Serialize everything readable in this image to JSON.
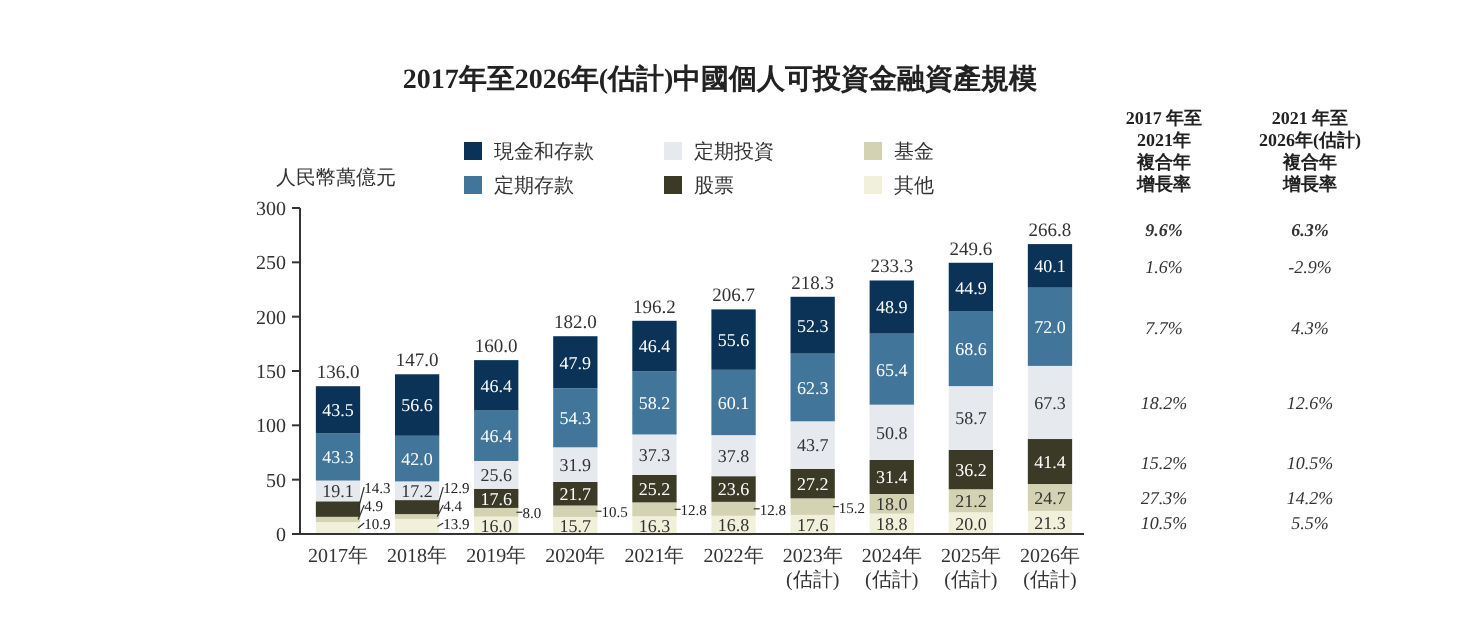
{
  "chart_data": {
    "type": "bar",
    "stacked": true,
    "title": "2017年至2026年(估計)中國個人可投資金融資產規模",
    "ylabel": "人民幣萬億元",
    "categories": [
      "2017年",
      "2018年",
      "2019年",
      "2020年",
      "2021年",
      "2022年",
      "2023年\n(估計)",
      "2024年\n(估計)",
      "2025年\n(估計)",
      "2026年\n(估計)"
    ],
    "series": [
      {
        "name": "其他",
        "color": "#f1f0da",
        "values": [
          10.9,
          13.9,
          16.0,
          15.7,
          16.3,
          16.8,
          17.6,
          18.8,
          20.0,
          21.3
        ],
        "value_labels": [
          "10.9",
          "13.9",
          "16.0",
          "15.7",
          "16.3",
          "16.8",
          "17.6",
          "18.8",
          "20.0",
          "21.3"
        ]
      },
      {
        "name": "基金",
        "color": "#d3d2b2",
        "values": [
          4.9,
          4.4,
          8.0,
          10.5,
          12.8,
          12.8,
          15.2,
          18.0,
          21.2,
          24.7
        ],
        "value_labels": [
          "4.9",
          "4.4",
          "8.0",
          "10.5",
          "12.8",
          "12.8",
          "15.2",
          "18.0",
          "21.2",
          "24.7"
        ]
      },
      {
        "name": "股票",
        "color": "#3b3a26",
        "values": [
          14.3,
          12.9,
          17.6,
          21.7,
          25.2,
          23.6,
          27.2,
          31.4,
          36.2,
          41.4
        ],
        "value_labels": [
          "14.3",
          "12.9",
          "17.6",
          "21.7",
          "25.2",
          "23.6",
          "27.2",
          "31.4",
          "36.2",
          "41.4"
        ]
      },
      {
        "name": "定期投資",
        "color": "#e6e9ee",
        "values": [
          19.1,
          17.2,
          25.6,
          31.9,
          37.3,
          37.8,
          43.7,
          50.8,
          58.7,
          67.3
        ],
        "value_labels": [
          "19.1",
          "17.2",
          "25.6",
          "31.9",
          "37.3",
          "37.8",
          "43.7",
          "50.8",
          "58.7",
          "67.3"
        ]
      },
      {
        "name": "定期存款",
        "color": "#41769a",
        "values": [
          43.3,
          42.0,
          46.4,
          54.3,
          58.2,
          60.1,
          62.3,
          65.4,
          68.6,
          72.0
        ],
        "value_labels": [
          "43.3",
          "42.0",
          "46.4",
          "54.3",
          "58.2",
          "60.1",
          "62.3",
          "65.4",
          "68.6",
          "72.0"
        ]
      },
      {
        "name": "現金和存款",
        "color": "#0b3357",
        "values": [
          43.5,
          56.6,
          46.4,
          47.9,
          46.4,
          55.6,
          52.3,
          48.9,
          44.9,
          40.1
        ],
        "value_labels": [
          "43.5",
          "56.6",
          "46.4",
          "47.9",
          "46.4",
          "55.6",
          "52.3",
          "48.9",
          "44.9",
          "40.1"
        ]
      }
    ],
    "totals": [
      "136.0",
      "147.0",
      "160.0",
      "182.0",
      "196.2",
      "206.7",
      "218.3",
      "233.3",
      "249.6",
      "266.8"
    ],
    "ylim": [
      0,
      300
    ],
    "yticks": [
      0,
      50,
      100,
      150,
      200,
      250,
      300
    ],
    "grid": false,
    "legend": "top",
    "annotations": [
      "2017 年至2021年複合年增長率",
      "2021 年至2026年(估計)複合年增長率",
      "9.6%",
      "6.3%",
      "1.6%",
      "-2.9%",
      "7.7%",
      "4.3%",
      "18.2%",
      "12.6%",
      "15.2%",
      "10.5%",
      "27.3%",
      "14.2%",
      "10.5%",
      "5.5%"
    ]
  }
}
